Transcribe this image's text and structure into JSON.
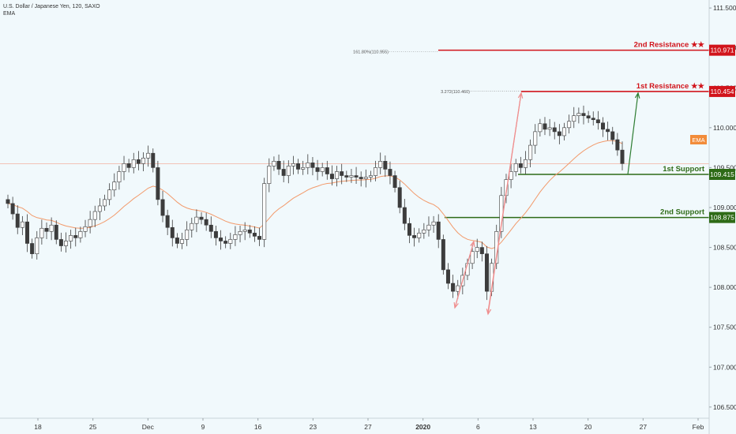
{
  "header": {
    "title": "U.S. Dollar / Japanese Yen, 120, SAXO",
    "indicator": "EMA"
  },
  "colors": {
    "background": "#f1f9fc",
    "candle": "#3c3c3c",
    "ema": "#f29a6b",
    "resistance": "#d1141b",
    "support": "#2e6b17",
    "arrow_up": "#2e7d32",
    "arrow_pink": "#ef8e8e",
    "ema_tag": "#f28c3a",
    "price_line": "#f4b0a0",
    "axis_text": "#333333"
  },
  "chart_data": {
    "type": "candlestick",
    "symbol": "USDJPY",
    "timeframe": "120",
    "y_axis": {
      "range": [
        106.36,
        111.6
      ],
      "ticks": [
        "111.500",
        "111.000",
        "110.500",
        "110.000",
        "109.500",
        "109.000",
        "108.500",
        "108.000",
        "107.500",
        "107.000",
        "106.500"
      ]
    },
    "x_axis": {
      "ticks": [
        "18",
        "25",
        "Dec",
        "9",
        "16",
        "23",
        "27",
        "2020",
        "6",
        "13",
        "20",
        "27",
        "Feb"
      ]
    },
    "levels": [
      {
        "id": "r2",
        "label": "2nd Resistance ★★",
        "value": 110.971,
        "tag": "110.971",
        "role": "resistance"
      },
      {
        "id": "r1",
        "label": "1st Resistance ★★",
        "value": 110.454,
        "tag": "110.454",
        "role": "resistance"
      },
      {
        "id": "s1",
        "label": "1st Support",
        "value": 109.415,
        "tag": "109.415",
        "role": "support"
      },
      {
        "id": "s2",
        "label": "2nd Support",
        "value": 108.875,
        "tag": "108.875",
        "role": "support"
      }
    ],
    "fib_annotations": [
      {
        "text": "161.80%(110.955)",
        "value": 110.955
      },
      {
        "text": "3.272(110.460)",
        "value": 110.46
      }
    ],
    "ema_tag": "EMA",
    "close_series": [
      109.05,
      108.92,
      108.75,
      108.82,
      108.55,
      108.42,
      108.62,
      108.74,
      108.7,
      108.78,
      108.6,
      108.52,
      108.58,
      108.65,
      108.62,
      108.7,
      108.76,
      108.85,
      108.95,
      109.02,
      109.1,
      109.22,
      109.32,
      109.45,
      109.55,
      109.5,
      109.6,
      109.55,
      109.62,
      109.68,
      109.5,
      109.1,
      108.9,
      108.75,
      108.62,
      108.55,
      108.6,
      108.72,
      108.8,
      108.88,
      108.85,
      108.78,
      108.7,
      108.62,
      108.58,
      108.55,
      108.6,
      108.66,
      108.7,
      108.72,
      108.68,
      108.64,
      108.6,
      109.3,
      109.52,
      109.58,
      109.48,
      109.4,
      109.52,
      109.55,
      109.48,
      109.5,
      109.56,
      109.5,
      109.45,
      109.5,
      109.42,
      109.36,
      109.45,
      109.4,
      109.38,
      109.4,
      109.38,
      109.36,
      109.38,
      109.4,
      109.5,
      109.58,
      109.48,
      109.4,
      109.25,
      109.0,
      108.8,
      108.65,
      108.62,
      108.68,
      108.72,
      108.78,
      108.82,
      108.6,
      108.22,
      108.05,
      107.95,
      108.02,
      108.15,
      108.3,
      108.45,
      108.5,
      108.42,
      107.95,
      108.3,
      108.7,
      109.15,
      109.35,
      109.45,
      109.55,
      109.5,
      109.6,
      109.78,
      109.95,
      110.05,
      109.98,
      110.0,
      109.95,
      109.9,
      110.0,
      110.08,
      110.15,
      110.18,
      110.15,
      110.12,
      110.1,
      110.06,
      109.98,
      109.95,
      109.85,
      109.72,
      109.55
    ]
  }
}
